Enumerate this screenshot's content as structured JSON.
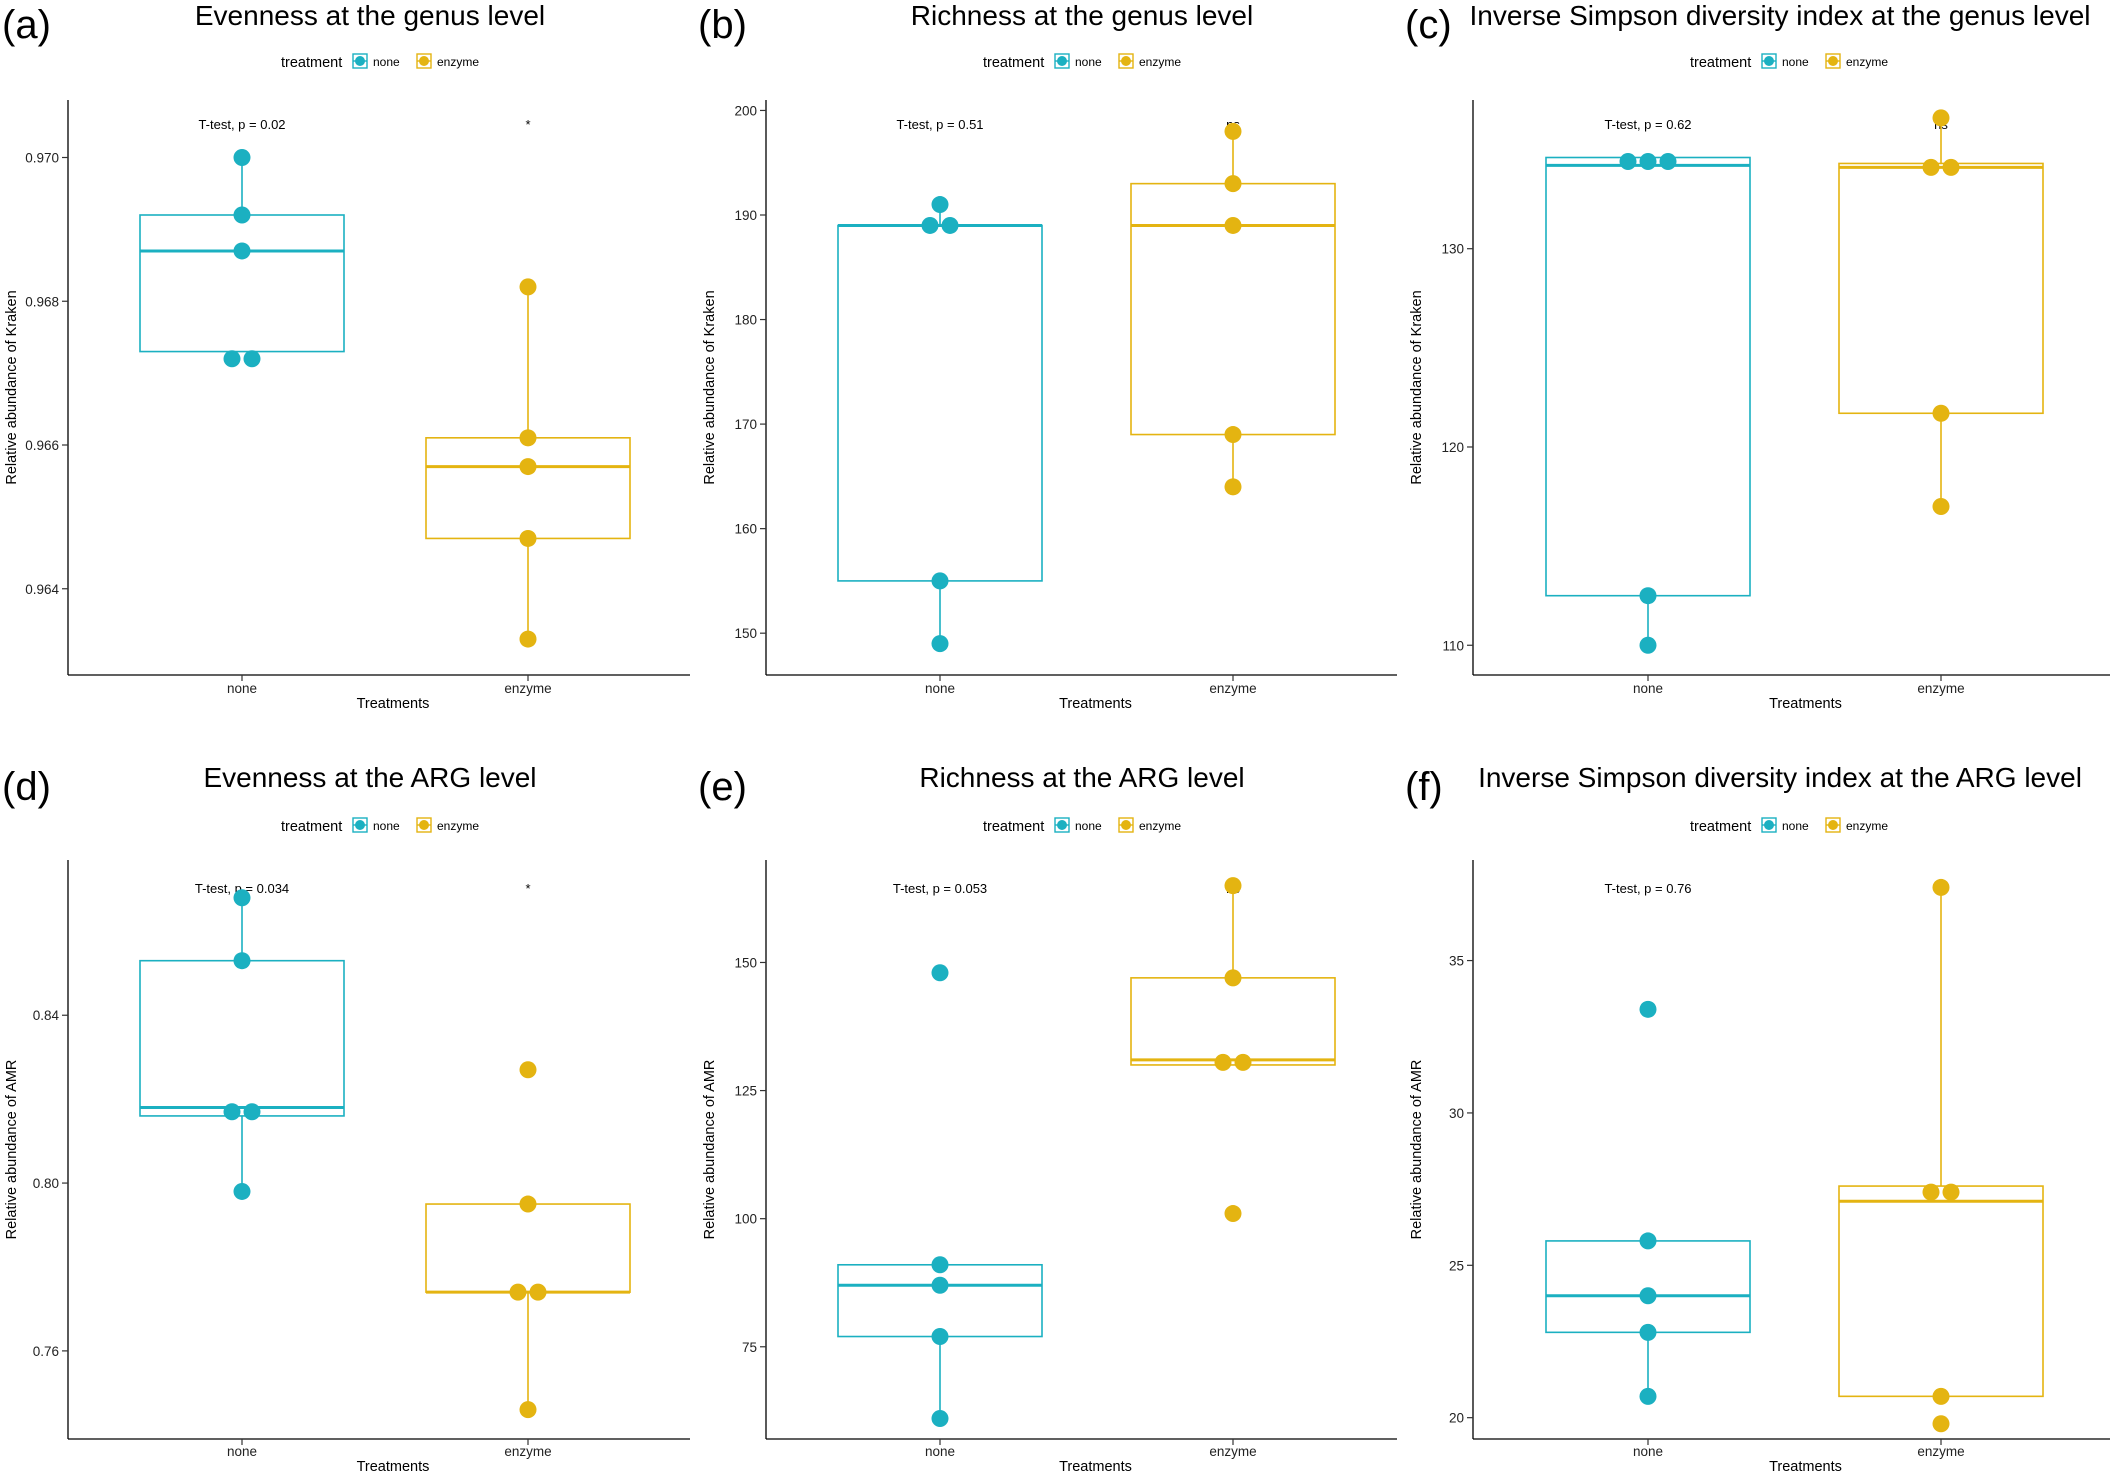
{
  "legend": {
    "title": "treatment",
    "entries": [
      {
        "label": "none",
        "color": "#1BB0C1"
      },
      {
        "label": "enzyme",
        "color": "#E4B411"
      }
    ]
  },
  "chart_data": [
    {
      "type": "box",
      "letter": "(a)",
      "title": "Evenness at the genus level",
      "xlabel": "Treatments",
      "ylabel": "Relative abundance of Kraken",
      "categories": [
        "none",
        "enzyme"
      ],
      "ylim": [
        0.9628,
        0.9708
      ],
      "yticks": [
        0.964,
        0.966,
        0.968,
        0.97
      ],
      "yticklabels": [
        "0.964",
        "0.966",
        "0.968",
        "0.970"
      ],
      "test_label": "T-test, p = 0.02",
      "signif": "*",
      "boxes": [
        {
          "category": "none",
          "q1": 0.9673,
          "median": 0.9687,
          "q3": 0.9692,
          "whisker_low": 0.9673,
          "whisker_high": 0.97
        },
        {
          "category": "enzyme",
          "q1": 0.9647,
          "median": 0.9657,
          "q3": 0.9661,
          "whisker_low": 0.9633,
          "whisker_high": 0.9682
        }
      ],
      "points": [
        {
          "category": "none",
          "values": [
            0.97,
            0.9692,
            0.9687,
            0.9672,
            0.9672
          ]
        },
        {
          "category": "enzyme",
          "values": [
            0.9682,
            0.9661,
            0.9657,
            0.9647,
            0.9633
          ]
        }
      ]
    },
    {
      "type": "box",
      "letter": "(b)",
      "title": "Richness at the genus level",
      "xlabel": "Treatments",
      "ylabel": "Relative abundance of Kraken",
      "categories": [
        "none",
        "enzyme"
      ],
      "ylim": [
        146,
        201
      ],
      "yticks": [
        150,
        160,
        170,
        180,
        190,
        200
      ],
      "yticklabels": [
        "150",
        "160",
        "170",
        "180",
        "190",
        "200"
      ],
      "test_label": "T-test, p = 0.51",
      "signif": "ns",
      "boxes": [
        {
          "category": "none",
          "q1": 155,
          "median": 189,
          "q3": 189,
          "whisker_low": 149,
          "whisker_high": 191
        },
        {
          "category": "enzyme",
          "q1": 169,
          "median": 189,
          "q3": 193,
          "whisker_low": 164,
          "whisker_high": 198
        }
      ],
      "points": [
        {
          "category": "none",
          "values": [
            191,
            189,
            189,
            155,
            149
          ]
        },
        {
          "category": "enzyme",
          "values": [
            198,
            193,
            189,
            169,
            164
          ]
        }
      ]
    },
    {
      "type": "box",
      "letter": "(c)",
      "title": "Inverse Simpson diversity index at the genus level",
      "xlabel": "Treatments",
      "ylabel": "Relative abundance of Kraken",
      "categories": [
        "none",
        "enzyme"
      ],
      "ylim": [
        108.5,
        137.5
      ],
      "yticks": [
        110,
        120,
        130
      ],
      "yticklabels": [
        "110",
        "120",
        "130"
      ],
      "test_label": "T-test, p = 0.62",
      "signif": "ns",
      "boxes": [
        {
          "category": "none",
          "q1": 112.5,
          "median": 134.2,
          "q3": 134.6,
          "whisker_low": 110,
          "whisker_high": 134.6
        },
        {
          "category": "enzyme",
          "q1": 121.7,
          "median": 134.1,
          "q3": 134.3,
          "whisker_low": 117,
          "whisker_high": 136.6
        }
      ],
      "points": [
        {
          "category": "none",
          "values": [
            134.4,
            134.4,
            134.4,
            112.5,
            110.0
          ]
        },
        {
          "category": "enzyme",
          "values": [
            136.6,
            134.1,
            134.1,
            121.7,
            117.0
          ]
        }
      ]
    },
    {
      "type": "box",
      "letter": "(d)",
      "title": "Evenness at the ARG level",
      "xlabel": "Treatments",
      "ylabel": "Relative abundance of AMR",
      "categories": [
        "none",
        "enzyme"
      ],
      "ylim": [
        0.739,
        0.877
      ],
      "yticks": [
        0.76,
        0.8,
        0.84
      ],
      "yticklabels": [
        "0.76",
        "0.80",
        "0.84"
      ],
      "test_label": "T-test, p = 0.034",
      "signif": "*",
      "boxes": [
        {
          "category": "none",
          "q1": 0.816,
          "median": 0.818,
          "q3": 0.853,
          "whisker_low": 0.798,
          "whisker_high": 0.868
        },
        {
          "category": "enzyme",
          "q1": 0.774,
          "median": 0.774,
          "q3": 0.795,
          "whisker_low": 0.746,
          "whisker_high": 0.795
        }
      ],
      "points": [
        {
          "category": "none",
          "values": [
            0.868,
            0.853,
            0.817,
            0.817,
            0.798
          ]
        },
        {
          "category": "enzyme",
          "values": [
            0.827,
            0.795,
            0.774,
            0.774,
            0.746
          ]
        }
      ]
    },
    {
      "type": "box",
      "letter": "(e)",
      "title": "Richness at the ARG level",
      "xlabel": "Treatments",
      "ylabel": "Relative abundance of AMR",
      "categories": [
        "none",
        "enzyme"
      ],
      "ylim": [
        57,
        170
      ],
      "yticks": [
        75,
        100,
        125,
        150
      ],
      "yticklabels": [
        "75",
        "100",
        "125",
        "150"
      ],
      "test_label": "T-test, p = 0.053",
      "signif": "ns",
      "boxes": [
        {
          "category": "none",
          "q1": 77,
          "median": 87,
          "q3": 91,
          "whisker_low": 61,
          "whisker_high": 91
        },
        {
          "category": "enzyme",
          "q1": 130,
          "median": 131,
          "q3": 147,
          "whisker_low": 130,
          "whisker_high": 165
        }
      ],
      "points": [
        {
          "category": "none",
          "values": [
            148,
            91,
            87,
            77,
            61
          ]
        },
        {
          "category": "enzyme",
          "values": [
            165,
            147,
            130.5,
            130.5,
            101
          ]
        }
      ]
    },
    {
      "type": "box",
      "letter": "(f)",
      "title": "Inverse Simpson diversity index at the ARG level",
      "xlabel": "Treatments",
      "ylabel": "Relative abundance of AMR",
      "categories": [
        "none",
        "enzyme"
      ],
      "ylim": [
        19.3,
        38.3
      ],
      "yticks": [
        20,
        25,
        30,
        35
      ],
      "yticklabels": [
        "20",
        "25",
        "30",
        "35"
      ],
      "test_label": "T-test, p = 0.76",
      "signif": "ns",
      "boxes": [
        {
          "category": "none",
          "q1": 22.8,
          "median": 24.0,
          "q3": 25.8,
          "whisker_low": 20.7,
          "whisker_high": 25.8
        },
        {
          "category": "enzyme",
          "q1": 20.7,
          "median": 27.1,
          "q3": 27.6,
          "whisker_low": 20.7,
          "whisker_high": 37.4
        }
      ],
      "points": [
        {
          "category": "none",
          "values": [
            33.4,
            25.8,
            24.0,
            22.8,
            20.7
          ]
        },
        {
          "category": "enzyme",
          "values": [
            37.4,
            27.4,
            27.4,
            20.7,
            19.8
          ]
        }
      ]
    }
  ]
}
